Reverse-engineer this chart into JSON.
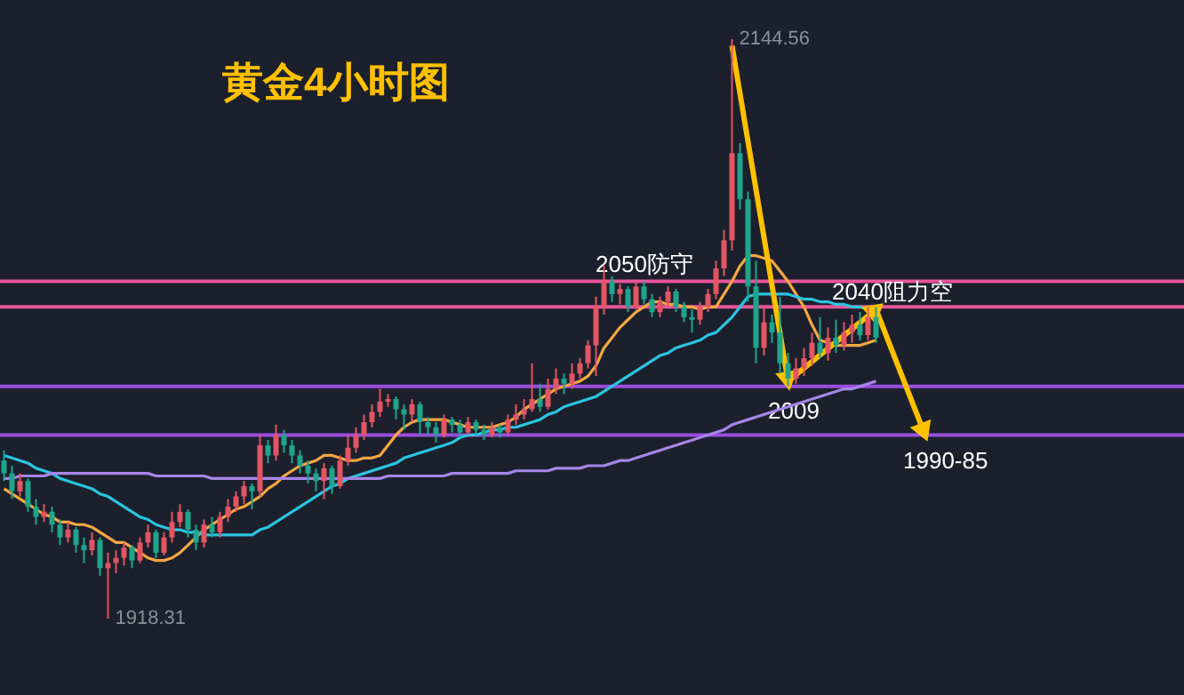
{
  "chart_data": {
    "type": "candlestick",
    "title": "黄金4小时图",
    "categories": [
      null,
      null,
      null,
      null,
      null,
      null,
      null,
      null,
      null,
      null,
      null,
      null,
      null,
      null,
      null,
      null,
      null,
      null,
      null,
      null,
      null,
      null,
      null,
      null,
      null,
      null,
      null,
      null,
      null,
      null,
      null,
      null,
      null,
      null,
      null,
      null,
      null,
      null,
      null,
      null,
      null,
      null,
      null,
      null,
      null,
      null,
      null,
      null,
      null,
      null,
      null,
      null,
      null,
      null,
      null,
      null,
      null,
      null,
      null,
      null,
      null,
      null,
      null,
      null,
      null,
      null,
      null,
      null,
      null,
      null,
      null,
      null,
      null,
      null,
      null,
      null,
      null,
      null,
      null,
      null,
      null,
      null,
      null,
      null,
      null,
      null,
      null,
      null,
      null,
      null,
      null,
      null,
      null,
      null,
      null,
      null,
      null,
      null,
      null,
      null,
      null,
      null,
      null,
      null,
      null,
      null,
      null,
      null,
      null,
      null,
      null,
      null,
      null,
      null,
      null,
      null,
      null,
      null,
      null,
      null,
      null,
      null,
      null,
      null,
      null,
      null,
      null,
      null,
      null,
      null,
      null,
      null,
      null,
      null,
      null,
      null,
      null,
      null,
      null,
      null,
      null,
      null,
      null,
      null,
      null,
      null,
      null,
      null
    ],
    "ohlc": [
      [
        1980,
        1984,
        1972,
        1975
      ],
      [
        1975,
        1978,
        1965,
        1968
      ],
      [
        1968,
        1975,
        1966,
        1972
      ],
      [
        1972,
        1973,
        1960,
        1962
      ],
      [
        1962,
        1965,
        1955,
        1958
      ],
      [
        1958,
        1963,
        1956,
        1960
      ],
      [
        1960,
        1962,
        1952,
        1955
      ],
      [
        1955,
        1957,
        1947,
        1950
      ],
      [
        1950,
        1956,
        1948,
        1953
      ],
      [
        1953,
        1954,
        1944,
        1947
      ],
      [
        1947,
        1950,
        1940,
        1945
      ],
      [
        1945,
        1952,
        1943,
        1949
      ],
      [
        1949,
        1950,
        1935,
        1938
      ],
      [
        1938,
        1944,
        1918.31,
        1940
      ],
      [
        1940,
        1945,
        1936,
        1942
      ],
      [
        1942,
        1948,
        1939,
        1946
      ],
      [
        1946,
        1947,
        1938,
        1941
      ],
      [
        1941,
        1950,
        1940,
        1948
      ],
      [
        1948,
        1955,
        1946,
        1952
      ],
      [
        1952,
        1953,
        1942,
        1944
      ],
      [
        1944,
        1952,
        1943,
        1950
      ],
      [
        1950,
        1960,
        1948,
        1956
      ],
      [
        1956,
        1963,
        1954,
        1960
      ],
      [
        1960,
        1961,
        1950,
        1953
      ],
      [
        1953,
        1955,
        1945,
        1948
      ],
      [
        1948,
        1957,
        1946,
        1955
      ],
      [
        1955,
        1958,
        1950,
        1952
      ],
      [
        1952,
        1960,
        1950,
        1958
      ],
      [
        1958,
        1965,
        1956,
        1962
      ],
      [
        1962,
        1968,
        1960,
        1966
      ],
      [
        1966,
        1972,
        1963,
        1970
      ],
      [
        1970,
        1971,
        1961,
        1968
      ],
      [
        1968,
        1990,
        1966,
        1986
      ],
      [
        1986,
        1988,
        1979,
        1982
      ],
      [
        1982,
        1994,
        1980,
        1990
      ],
      [
        1990,
        1992,
        1983,
        1986
      ],
      [
        1986,
        1988,
        1979,
        1982
      ],
      [
        1982,
        1984,
        1975,
        1978
      ],
      [
        1978,
        1980,
        1971,
        1975
      ],
      [
        1975,
        1977,
        1968,
        1972
      ],
      [
        1972,
        1979,
        1965,
        1977
      ],
      [
        1977,
        1978,
        1967,
        1970
      ],
      [
        1970,
        1982,
        1969,
        1980
      ],
      [
        1980,
        1990,
        1978,
        1985
      ],
      [
        1985,
        1993,
        1983,
        1990
      ],
      [
        1990,
        1998,
        1988,
        1995
      ],
      [
        1995,
        2002,
        1993,
        1999
      ],
      [
        1999,
        2008,
        1997,
        2003
      ],
      [
        2003,
        2006,
        2001,
        2004
      ],
      [
        2004,
        2005,
        1996,
        2000
      ],
      [
        2000,
        2002,
        1992,
        1998
      ],
      [
        1998,
        2004,
        1995,
        2002
      ],
      [
        2002,
        2003,
        1990,
        1995
      ],
      [
        1995,
        1997,
        1990,
        1993
      ],
      [
        1993,
        1995,
        1987,
        1990
      ],
      [
        1990,
        1998,
        1989,
        1996
      ],
      [
        1996,
        1997,
        1991,
        1994
      ],
      [
        1994,
        1996,
        1989,
        1991
      ],
      [
        1991,
        1997,
        1990,
        1995
      ],
      [
        1995,
        1996,
        1990,
        1992
      ],
      [
        1992,
        1994,
        1988,
        1990
      ],
      [
        1990,
        1995,
        1989,
        1993
      ],
      [
        1993,
        1994,
        1989,
        1991
      ],
      [
        1991,
        1998,
        1990,
        1996
      ],
      [
        1996,
        2002,
        1994,
        1998
      ],
      [
        1998,
        2004,
        1996,
        2000
      ],
      [
        2000,
        2018,
        1999,
        2004
      ],
      [
        2004,
        2010,
        1999,
        2001
      ],
      [
        2001,
        2012,
        2000,
        2008
      ],
      [
        2008,
        2016,
        2006,
        2012
      ],
      [
        2012,
        2014,
        2006,
        2010
      ],
      [
        2010,
        2018,
        2008,
        2014
      ],
      [
        2014,
        2020,
        2012,
        2018
      ],
      [
        2018,
        2027,
        2016,
        2025
      ],
      [
        2025,
        2044,
        2013,
        2040
      ],
      [
        2040,
        2056,
        2037,
        2050
      ],
      [
        2050,
        2052,
        2042,
        2045
      ],
      [
        2045,
        2049,
        2041,
        2047
      ],
      [
        2047,
        2048,
        2038,
        2040
      ],
      [
        2040,
        2050,
        2039,
        2048
      ],
      [
        2048,
        2050,
        2041,
        2043
      ],
      [
        2043,
        2045,
        2036,
        2038
      ],
      [
        2038,
        2044,
        2036,
        2042
      ],
      [
        2042,
        2048,
        2040,
        2046
      ],
      [
        2046,
        2047,
        2038,
        2040
      ],
      [
        2040,
        2042,
        2034,
        2036
      ],
      [
        2036,
        2039,
        2030,
        2035
      ],
      [
        2035,
        2042,
        2033,
        2040
      ],
      [
        2040,
        2047,
        2038,
        2045
      ],
      [
        2045,
        2058,
        2043,
        2055
      ],
      [
        2055,
        2070,
        2052,
        2066
      ],
      [
        2066,
        2144.56,
        2062,
        2100
      ],
      [
        2100,
        2104,
        2078,
        2082
      ],
      [
        2082,
        2085,
        2042,
        2048
      ],
      [
        2048,
        2058,
        2018,
        2024
      ],
      [
        2024,
        2040,
        2021,
        2034
      ],
      [
        2034,
        2037,
        2026,
        2030
      ],
      [
        2030,
        2044,
        2014,
        2018
      ],
      [
        2018,
        2022,
        2009,
        2012
      ],
      [
        2012,
        2020,
        2010,
        2016
      ],
      [
        2016,
        2024,
        2013,
        2020
      ],
      [
        2020,
        2030,
        2017,
        2026
      ],
      [
        2026,
        2036,
        2020,
        2022
      ],
      [
        2022,
        2032,
        2019,
        2028
      ],
      [
        2028,
        2035,
        2022,
        2025
      ],
      [
        2025,
        2034,
        2023,
        2030
      ],
      [
        2030,
        2037,
        2026,
        2033
      ],
      [
        2033,
        2038,
        2027,
        2029
      ],
      [
        2029,
        2040,
        2027,
        2036
      ],
      [
        2036,
        2040,
        2026,
        2028
      ],
      null,
      null,
      null,
      null,
      null,
      null,
      null,
      null,
      null,
      null,
      null,
      null,
      null,
      null,
      null,
      null,
      null,
      null,
      null,
      null,
      null,
      null,
      null,
      null,
      null,
      null,
      null,
      null,
      null,
      null,
      null,
      null,
      null,
      null,
      null,
      null,
      null,
      null
    ],
    "colors": [
      "#1fa58c",
      "#1fa58c",
      "#e25563",
      "#1fa58c",
      "#1fa58c",
      "#e25563",
      "#1fa58c",
      "#1fa58c",
      "#e25563",
      "#1fa58c",
      "#1fa58c",
      "#e25563",
      "#1fa58c",
      "#e25563",
      "#e25563",
      "#e25563",
      "#1fa58c",
      "#e25563",
      "#e25563",
      "#1fa58c",
      "#e25563",
      "#e25563",
      "#e25563",
      "#1fa58c",
      "#1fa58c",
      "#e25563",
      "#1fa58c",
      "#e25563",
      "#e25563",
      "#e25563",
      "#e25563",
      "#1fa58c",
      "#e25563",
      "#1fa58c",
      "#e25563",
      "#1fa58c",
      "#1fa58c",
      "#1fa58c",
      "#1fa58c",
      "#1fa58c",
      "#e25563",
      "#1fa58c",
      "#e25563",
      "#e25563",
      "#e25563",
      "#e25563",
      "#e25563",
      "#e25563",
      "#e25563",
      "#1fa58c",
      "#1fa58c",
      "#e25563",
      "#1fa58c",
      "#1fa58c",
      "#1fa58c",
      "#e25563",
      "#1fa58c",
      "#1fa58c",
      "#e25563",
      "#1fa58c",
      "#1fa58c",
      "#e25563",
      "#1fa58c",
      "#e25563",
      "#e25563",
      "#e25563",
      "#e25563",
      "#1fa58c",
      "#e25563",
      "#e25563",
      "#1fa58c",
      "#e25563",
      "#e25563",
      "#e25563",
      "#e25563",
      "#e25563",
      "#1fa58c",
      "#e25563",
      "#1fa58c",
      "#e25563",
      "#1fa58c",
      "#1fa58c",
      "#e25563",
      "#e25563",
      "#1fa58c",
      "#1fa58c",
      "#1fa58c",
      "#e25563",
      "#e25563",
      "#e25563",
      "#e25563",
      "#e25563",
      "#1fa58c",
      "#1fa58c",
      "#1fa58c",
      "#e25563",
      "#1fa58c",
      "#1fa58c",
      "#1fa58c",
      "#e25563",
      "#e25563",
      "#e25563",
      "#1fa58c",
      "#e25563",
      "#1fa58c",
      "#e25563",
      "#e25563",
      "#1fa58c",
      "#e25563",
      "#1fa58c",
      null,
      null,
      null,
      null,
      null,
      null,
      null,
      null,
      null,
      null,
      null,
      null,
      null,
      null,
      null,
      null,
      null,
      null,
      null,
      null,
      null,
      null,
      null,
      null,
      null,
      null,
      null,
      null,
      null,
      null,
      null,
      null,
      null,
      null,
      null,
      null,
      null,
      null
    ],
    "series": [
      {
        "type": "line",
        "color": "#f5a742",
        "values": [
          1969,
          1967,
          1965,
          1963,
          1961,
          1959,
          1958,
          1956,
          1956,
          1955,
          1955,
          1954,
          1952,
          1950,
          1948,
          1948,
          1946,
          1944,
          1942,
          1941,
          1941,
          1942,
          1944,
          1947,
          1950,
          1953,
          1955,
          1957,
          1959,
          1961,
          1962,
          1964,
          1966,
          1969,
          1971,
          1974,
          1976,
          1978,
          1979,
          1980,
          1982,
          1982,
          1981,
          1980,
          1980,
          1981,
          1981,
          1982,
          1986,
          1990,
          1993,
          1995,
          1996,
          1996,
          1996,
          1996,
          1995,
          1994,
          1993,
          1993,
          1993,
          1993,
          1994,
          1995,
          1997,
          2000,
          2002,
          2004,
          2006,
          2008,
          2009,
          2010,
          2011,
          2013,
          2017,
          2024,
          2028,
          2032,
          2035,
          2038,
          2040,
          2042,
          2042,
          2041,
          2041,
          2040,
          2040,
          2039,
          2040,
          2040,
          2045,
          2050,
          2056,
          2060,
          2060,
          2059,
          2058,
          2054,
          2050,
          2045,
          2040,
          2033,
          2027,
          2026,
          2025,
          2025,
          2025,
          2025,
          2026,
          2027,
          null,
          null,
          null,
          null,
          null,
          null,
          null,
          null,
          null,
          null,
          null,
          null,
          null,
          null,
          null,
          null,
          null,
          null,
          null,
          null,
          null,
          null,
          null,
          null,
          null,
          null,
          null,
          null,
          null,
          null,
          null,
          null,
          null,
          null,
          null,
          null,
          null,
          null
        ]
      },
      {
        "type": "line",
        "color": "#2bc4e0",
        "values": [
          1982,
          1981,
          1980,
          1979,
          1977,
          1976,
          1975,
          1973,
          1972,
          1971,
          1970,
          1969,
          1967,
          1966,
          1964,
          1962,
          1960,
          1958,
          1957,
          1955,
          1954,
          1953,
          1953,
          1952,
          1952,
          1951,
          1951,
          1951,
          1951,
          1951,
          1951,
          1951,
          1953,
          1954,
          1956,
          1958,
          1960,
          1962,
          1964,
          1966,
          1968,
          1970,
          1971,
          1973,
          1974,
          1975,
          1976,
          1977,
          1978,
          1979,
          1981,
          1982,
          1983,
          1984,
          1985,
          1986,
          1987,
          1989,
          1990,
          1990,
          1991,
          1992,
          1992,
          1993,
          1993,
          1994,
          1995,
          1996,
          1998,
          1999,
          2001,
          2002,
          2003,
          2004,
          2005,
          2007,
          2009,
          2011,
          2013,
          2015,
          2017,
          2019,
          2021,
          2022,
          2024,
          2025,
          2026,
          2027,
          2029,
          2030,
          2033,
          2036,
          2040,
          2044,
          2045,
          2045,
          2045,
          2045,
          2045,
          2044,
          2043,
          2043,
          2042,
          2042,
          2041,
          2041,
          2040,
          2040,
          2039,
          2039,
          null,
          null,
          null,
          null,
          null,
          null,
          null,
          null,
          null,
          null,
          null,
          null,
          null,
          null,
          null,
          null,
          null,
          null,
          null,
          null,
          null,
          null,
          null,
          null,
          null,
          null,
          null,
          null,
          null,
          null,
          null,
          null,
          null,
          null,
          null,
          null,
          null,
          null
        ]
      },
      {
        "type": "line",
        "color": "#a685e8",
        "values": [
          1973,
          1973,
          1974,
          1974,
          1974,
          1974,
          1975,
          1975,
          1975,
          1975,
          1975,
          1975,
          1975,
          1975,
          1975,
          1975,
          1975,
          1975,
          1975,
          1974,
          1974,
          1974,
          1974,
          1974,
          1974,
          1974,
          1973,
          1973,
          1973,
          1973,
          1973,
          1973,
          1973,
          1973,
          1973,
          1973,
          1973,
          1973,
          1973,
          1973,
          1973,
          1973,
          1973,
          1973,
          1973,
          1973,
          1973,
          1973,
          1974,
          1974,
          1974,
          1974,
          1974,
          1974,
          1974,
          1974,
          1975,
          1975,
          1975,
          1975,
          1975,
          1975,
          1975,
          1975,
          1976,
          1976,
          1976,
          1976,
          1976,
          1977,
          1977,
          1977,
          1977,
          1978,
          1978,
          1978,
          1979,
          1980,
          1980,
          1981,
          1982,
          1983,
          1984,
          1985,
          1986,
          1987,
          1988,
          1989,
          1990,
          1991,
          1992,
          1994,
          1995,
          1996,
          1997,
          1998,
          1999,
          2000,
          2001,
          2002,
          2003,
          2004,
          2005,
          2006,
          2007,
          2008,
          2008,
          2009,
          2010,
          2011,
          null,
          null,
          null,
          null,
          null,
          null,
          null,
          null,
          null,
          null,
          null,
          null,
          null,
          null,
          null,
          null,
          null,
          null,
          null,
          null,
          null,
          null,
          null,
          null,
          null,
          null,
          null,
          null,
          null,
          null,
          null,
          null,
          null,
          null,
          null,
          null,
          null,
          null
        ]
      },
      {
        "type": "line",
        "color": "#ffc000",
        "marker": "triangle",
        "values": [
          null,
          null,
          null,
          null,
          null,
          null,
          null,
          null,
          null,
          null,
          null,
          null,
          null,
          null,
          null,
          null,
          null,
          null,
          null,
          null,
          null,
          null,
          null,
          null,
          null,
          null,
          null,
          null,
          null,
          null,
          null,
          null,
          null,
          null,
          null,
          null,
          null,
          null,
          null,
          null,
          null,
          null,
          null,
          null,
          null,
          null,
          null,
          null,
          null,
          null,
          null,
          null,
          null,
          null,
          null,
          null,
          null,
          null,
          null,
          null,
          null,
          null,
          null,
          null,
          null,
          null,
          null,
          null,
          null,
          null,
          null,
          null,
          null,
          null,
          null,
          null,
          null,
          null,
          null,
          null,
          null,
          null,
          null,
          null,
          null,
          null,
          null,
          null,
          null,
          null,
          null,
          2142,
          null,
          null,
          null,
          null,
          null,
          null,
          2011,
          null,
          null,
          null,
          null,
          null,
          null,
          null,
          null,
          null,
          null,
          null,
          null,
          null,
          null,
          null,
          null,
          null,
          null,
          null,
          null,
          null,
          null,
          null,
          null,
          null,
          null,
          null,
          null,
          null,
          null,
          null,
          null,
          null,
          null,
          null,
          null,
          null,
          null,
          null,
          null,
          null,
          null,
          null,
          null,
          null,
          null,
          null,
          null,
          null
        ]
      },
      {
        "type": "line",
        "color": "#ffc000",
        "marker": "triangle",
        "values": [
          null,
          null,
          null,
          null,
          null,
          null,
          null,
          null,
          null,
          null,
          null,
          null,
          null,
          null,
          null,
          null,
          null,
          null,
          null,
          null,
          null,
          null,
          null,
          null,
          null,
          null,
          null,
          null,
          null,
          null,
          null,
          null,
          null,
          null,
          null,
          null,
          null,
          null,
          null,
          null,
          null,
          null,
          null,
          null,
          null,
          null,
          null,
          null,
          null,
          null,
          null,
          null,
          null,
          null,
          null,
          null,
          null,
          null,
          null,
          null,
          null,
          null,
          null,
          null,
          null,
          null,
          null,
          null,
          null,
          null,
          null,
          null,
          null,
          null,
          null,
          null,
          null,
          null,
          null,
          null,
          null,
          null,
          null,
          null,
          null,
          null,
          null,
          null,
          null,
          null,
          null,
          null,
          null,
          null,
          null,
          null,
          null,
          null,
          2011,
          null,
          null,
          null,
          null,
          null,
          null,
          null,
          null,
          null,
          null,
          2039,
          null,
          null,
          null,
          null,
          null,
          null,
          null,
          null,
          null,
          null,
          null,
          null,
          null,
          null,
          null,
          null,
          null,
          null,
          null,
          null,
          null,
          null,
          null,
          null,
          null,
          null,
          null,
          null,
          null,
          null,
          null,
          null,
          null,
          null,
          null,
          null,
          null,
          null
        ]
      },
      {
        "type": "line",
        "color": "#ffc000",
        "marker": "triangle",
        "values": [
          null,
          null,
          null,
          null,
          null,
          null,
          null,
          null,
          null,
          null,
          null,
          null,
          null,
          null,
          null,
          null,
          null,
          null,
          null,
          null,
          null,
          null,
          null,
          null,
          null,
          null,
          null,
          null,
          null,
          null,
          null,
          null,
          null,
          null,
          null,
          null,
          null,
          null,
          null,
          null,
          null,
          null,
          null,
          null,
          null,
          null,
          null,
          null,
          null,
          null,
          null,
          null,
          null,
          null,
          null,
          null,
          null,
          null,
          null,
          null,
          null,
          null,
          null,
          null,
          null,
          null,
          null,
          null,
          null,
          null,
          null,
          null,
          null,
          null,
          null,
          null,
          null,
          null,
          null,
          null,
          null,
          null,
          null,
          null,
          null,
          null,
          null,
          null,
          null,
          null,
          null,
          null,
          null,
          null,
          null,
          null,
          null,
          null,
          null,
          null,
          null,
          null,
          null,
          null,
          null,
          null,
          null,
          null,
          null,
          2039,
          null,
          null,
          null,
          null,
          null,
          1991,
          null,
          null,
          null,
          null,
          null,
          null,
          null,
          null,
          null,
          null,
          null,
          null,
          null,
          null,
          null,
          null,
          null,
          null,
          null,
          null,
          null,
          null,
          null,
          null,
          null,
          null,
          null,
          null,
          null,
          null,
          null,
          null
        ]
      }
    ],
    "ref_lines": [
      {
        "axis": "y",
        "value": 2050,
        "label": "2050防守",
        "color": "#e8559a"
      },
      {
        "axis": "y",
        "value": 2040,
        "label": "2040阻力空",
        "color": "#e8559a"
      },
      {
        "axis": "y",
        "value": 2009,
        "label": "2009",
        "color": "#9b4de0"
      },
      {
        "axis": "y",
        "value": 1990,
        "label": "1990-85",
        "color": "#9b4de0"
      }
    ],
    "annotations": [
      "2144.56",
      "1918.31"
    ],
    "grid": false
  }
}
